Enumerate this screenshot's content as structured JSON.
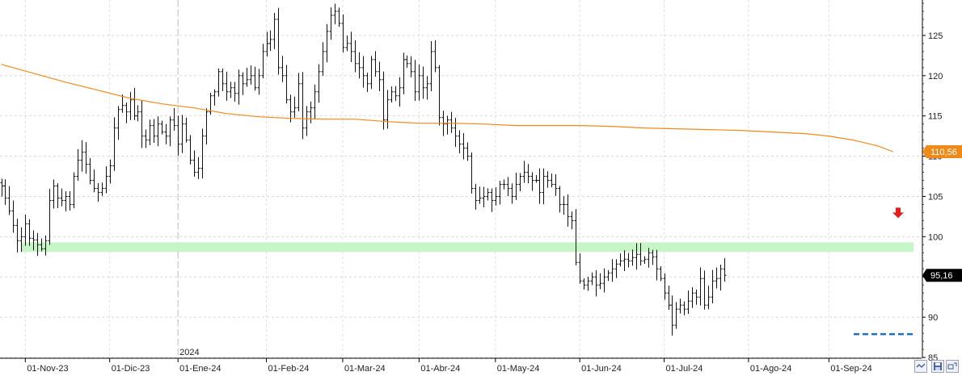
{
  "chart_data": {
    "type": "ohlc",
    "y_axis": {
      "position": "right",
      "ticks": [
        85,
        90,
        95,
        100,
        105,
        110,
        115,
        120,
        125
      ],
      "tick_labels": [
        "85",
        "90",
        "95",
        "100",
        "105",
        "110",
        "115",
        "120",
        "125"
      ],
      "ylim": [
        84.9,
        129.4
      ]
    },
    "x_axis": {
      "tick_labels": [
        "01-Nov-23",
        "01-Dic-23",
        "01-Ene-24",
        "01-Feb-24",
        "01-Mar-24",
        "01-Abr-24",
        "01-May-24",
        "01-Jun-24",
        "01-Jul-24",
        "01-Ago-24",
        "01-Sep-24"
      ],
      "tick_index": [
        6,
        27,
        44,
        66,
        85,
        104,
        123,
        144,
        165,
        186,
        206
      ],
      "year_marker": {
        "label": "2024",
        "index": 44
      }
    },
    "grid": true,
    "series": [
      {
        "kind": "price_bars",
        "close": [
          106.3,
          104.8,
          103.2,
          101.4,
          99.5,
          100.0,
          101.6,
          99.8,
          99.6,
          99.0,
          98.5,
          99.5,
          104.5,
          106.3,
          104.8,
          104.5,
          105.0,
          104.0,
          107.5,
          109.5,
          110.5,
          109.0,
          107.0,
          106.0,
          105.5,
          106.0,
          107.5,
          108.8,
          113.5,
          115.8,
          116.3,
          115.5,
          117.0,
          115.0,
          115.5,
          112.5,
          112.0,
          113.8,
          112.5,
          114.0,
          113.0,
          112.5,
          114.5,
          113.8,
          111.5,
          114.0,
          112.0,
          109.5,
          108.0,
          108.5,
          112.5,
          115.5,
          117.5,
          118.0,
          120.5,
          119.0,
          118.0,
          118.5,
          117.8,
          120.0,
          119.0,
          119.5,
          120.0,
          118.5,
          120.0,
          123.0,
          124.0,
          124.5,
          127.0,
          121.0,
          120.0,
          117.0,
          115.5,
          116.0,
          119.0,
          113.5,
          115.5,
          116.0,
          118.0,
          120.5,
          123.0,
          125.5,
          127.5,
          128.0,
          126.5,
          123.5,
          124.0,
          123.0,
          121.5,
          121.0,
          120.0,
          119.0,
          122.0,
          120.5,
          119.5,
          114.5,
          117.0,
          118.0,
          117.5,
          118.5,
          122.0,
          121.5,
          120.5,
          118.0,
          120.0,
          118.5,
          119.0,
          123.0,
          121.0,
          114.8,
          114.0,
          114.5,
          113.5,
          112.5,
          111.5,
          111.0,
          110.0,
          106.0,
          104.5,
          104.8,
          105.0,
          105.5,
          104.5,
          105.0,
          106.5,
          106.5,
          106.0,
          105.0,
          106.5,
          107.5,
          108.0,
          107.5,
          107.0,
          107.0,
          105.5,
          107.5,
          107.0,
          106.5,
          106.0,
          104.0,
          104.0,
          102.5,
          102.0,
          96.8,
          94.5,
          94.0,
          94.5,
          95.0,
          94.0,
          94.2,
          95.0,
          95.5,
          96.0,
          96.6,
          97.0,
          97.2,
          97.0,
          97.4,
          97.8,
          97.0,
          97.2,
          98.0,
          97.5,
          96.0,
          94.8,
          93.0,
          91.5,
          89.0,
          91.0,
          91.5,
          91.0,
          92.0,
          93.0,
          92.5,
          94.8,
          91.5,
          92.5,
          94.5,
          94.8,
          96.0,
          95.2
        ]
      },
      {
        "kind": "moving_average",
        "color": "#ee8a1a",
        "last_value": 110.56,
        "points": [
          [
            0,
            121.4
          ],
          [
            8,
            120.3
          ],
          [
            16,
            119.2
          ],
          [
            24,
            118.2
          ],
          [
            32,
            117.2
          ],
          [
            40,
            116.5
          ],
          [
            48,
            116.0
          ],
          [
            56,
            115.3
          ],
          [
            64,
            114.9
          ],
          [
            72,
            114.7
          ],
          [
            80,
            114.6
          ],
          [
            88,
            114.6
          ],
          [
            96,
            114.3
          ],
          [
            104,
            114.1
          ],
          [
            112,
            114.1
          ],
          [
            120,
            114.0
          ],
          [
            128,
            113.8
          ],
          [
            136,
            113.8
          ],
          [
            144,
            113.8
          ],
          [
            152,
            113.7
          ],
          [
            160,
            113.5
          ],
          [
            168,
            113.4
          ],
          [
            176,
            113.3
          ],
          [
            184,
            113.2
          ],
          [
            192,
            113.0
          ],
          [
            200,
            112.8
          ],
          [
            206,
            112.5
          ],
          [
            212,
            112.0
          ],
          [
            218,
            111.3
          ],
          [
            222,
            110.56
          ]
        ],
        "value_label": "110,56",
        "label_color": "#ee8a1a"
      }
    ],
    "annotations": {
      "support_zone": {
        "low": 98.1,
        "high": 99.3,
        "color": "#c8f5c8"
      },
      "low_line": {
        "value": 87.9,
        "color": "#1f6fc4",
        "style": "dashed"
      },
      "sell_arrow": {
        "value": 102.8,
        "color": "#e0201b"
      },
      "last_price_label": "95,16",
      "last_price_label_color": "#000000"
    }
  }
}
